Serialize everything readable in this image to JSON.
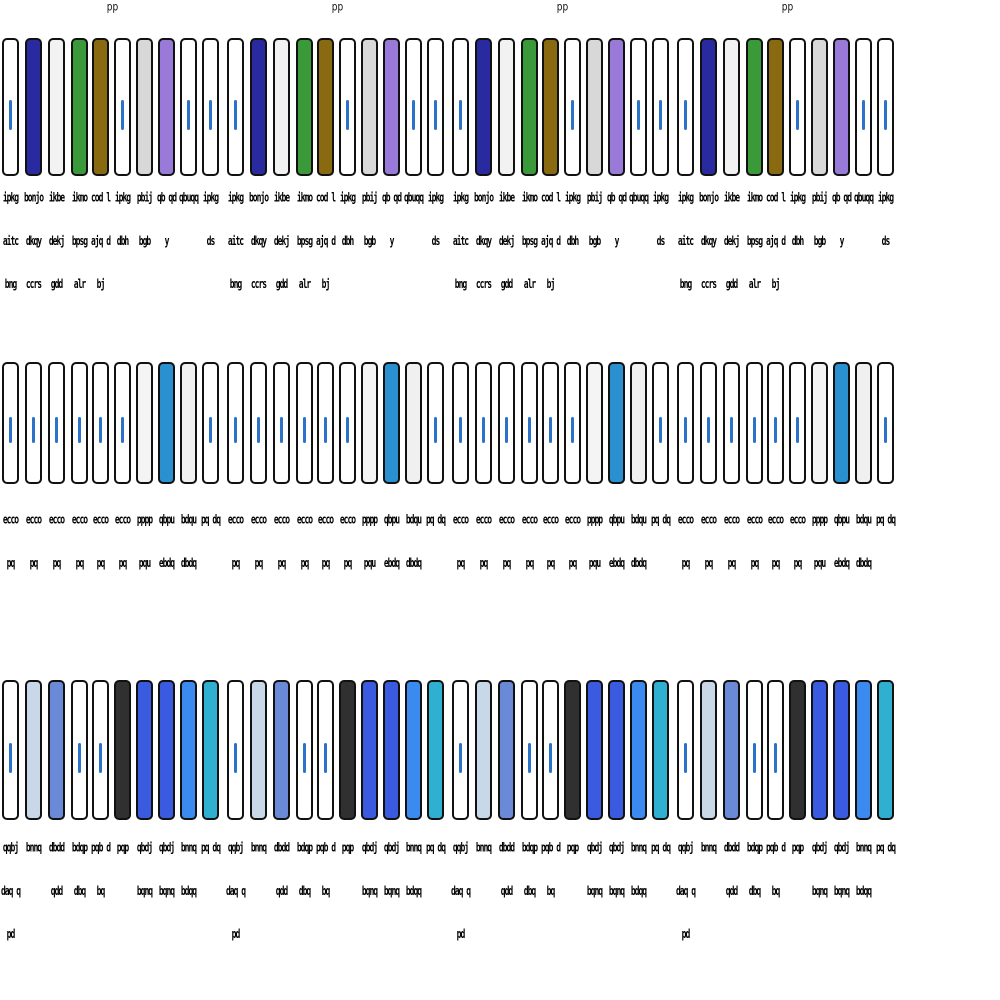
{
  "tiles": [
    {
      "row": 0,
      "label": "pp"
    },
    {
      "row": 0,
      "label": "pp"
    },
    {
      "row": 0,
      "label": "pp"
    },
    {
      "row": 0,
      "label": "pp"
    }
  ],
  "rows": [
    {
      "icons": [
        {
          "name": "document-page-icon",
          "bg": "#ffffff"
        },
        {
          "name": "blue-red-pattern-icon",
          "bg": "#2a2aa0"
        },
        {
          "name": "striped-document-icon",
          "bg": "#f2f2f2"
        },
        {
          "name": "green-wave-icon",
          "bg": "#3a9a3a"
        },
        {
          "name": "gold-map-icon",
          "bg": "#8a6a10"
        },
        {
          "name": "document-page-icon",
          "bg": "#ffffff"
        },
        {
          "name": "red-ball-icon",
          "bg": "#d8d8d8"
        },
        {
          "name": "purple-cyan-icon",
          "bg": "#9a7ad8"
        },
        {
          "name": "document-page-icon",
          "bg": "#ffffff"
        },
        {
          "name": "document-page-icon",
          "bg": "#ffffff"
        }
      ],
      "labels": [
        "ipkg aitc bng",
        "bonjo dkqy ccrs",
        "ikbe dekj gdd",
        "ikmo bpsg alr",
        "cod lajq dbj",
        "ipkg dbh",
        "pbij bgb",
        "qb qdy",
        "qbuqq",
        "ipkg ds"
      ]
    },
    {
      "icons": [
        {
          "name": "document-page-icon",
          "bg": "#ffffff"
        },
        {
          "name": "document-page-icon",
          "bg": "#ffffff"
        },
        {
          "name": "document-page-icon",
          "bg": "#ffffff"
        },
        {
          "name": "document-page-icon",
          "bg": "#ffffff"
        },
        {
          "name": "document-page-icon",
          "bg": "#ffffff"
        },
        {
          "name": "document-page-icon",
          "bg": "#ffffff"
        },
        {
          "name": "yellow-dot-document-icon",
          "bg": "#f4f4f4"
        },
        {
          "name": "globe-icon",
          "bg": "#2a90d0"
        },
        {
          "name": "gray-box-icon",
          "bg": "#f0f0f0"
        },
        {
          "name": "blue-drop-icon",
          "bg": "#ffffff"
        }
      ],
      "labels": [
        "ecco pq",
        "ecco pq",
        "ecco pq",
        "ecco pq",
        "ecco pq",
        "ecco pq",
        "pppp pqu",
        "qbpu ebdq",
        "bdqu dbdq",
        "pq dq"
      ]
    },
    {
      "icons": [
        {
          "name": "document-page-icon",
          "bg": "#ffffff"
        },
        {
          "name": "printer-icon",
          "bg": "#c8d8e8"
        },
        {
          "name": "blue-oval-icon",
          "bg": "#6a8ad8"
        },
        {
          "name": "white-page-icon",
          "bg": "#ffffff"
        },
        {
          "name": "page-fold-icon",
          "bg": "#ffffff"
        },
        {
          "name": "dark-gradient-icon",
          "bg": "#303030"
        },
        {
          "name": "blue-slash-icon",
          "bg": "#3a5ae0"
        },
        {
          "name": "blue-slash-icon",
          "bg": "#3a5ae0"
        },
        {
          "name": "blue-diamond-icon",
          "bg": "#3a8af0"
        },
        {
          "name": "cyan-folder-icon",
          "bg": "#30b0d0"
        }
      ],
      "labels": [
        "qqbj daq qpd",
        "bnnq",
        "dbdd qdd",
        "bdqp dbq",
        "pqb dbq",
        "pqp",
        "qbdj bqnq",
        "qbdj bqnq",
        "bnnq bdqq",
        "pq dq"
      ]
    }
  ]
}
